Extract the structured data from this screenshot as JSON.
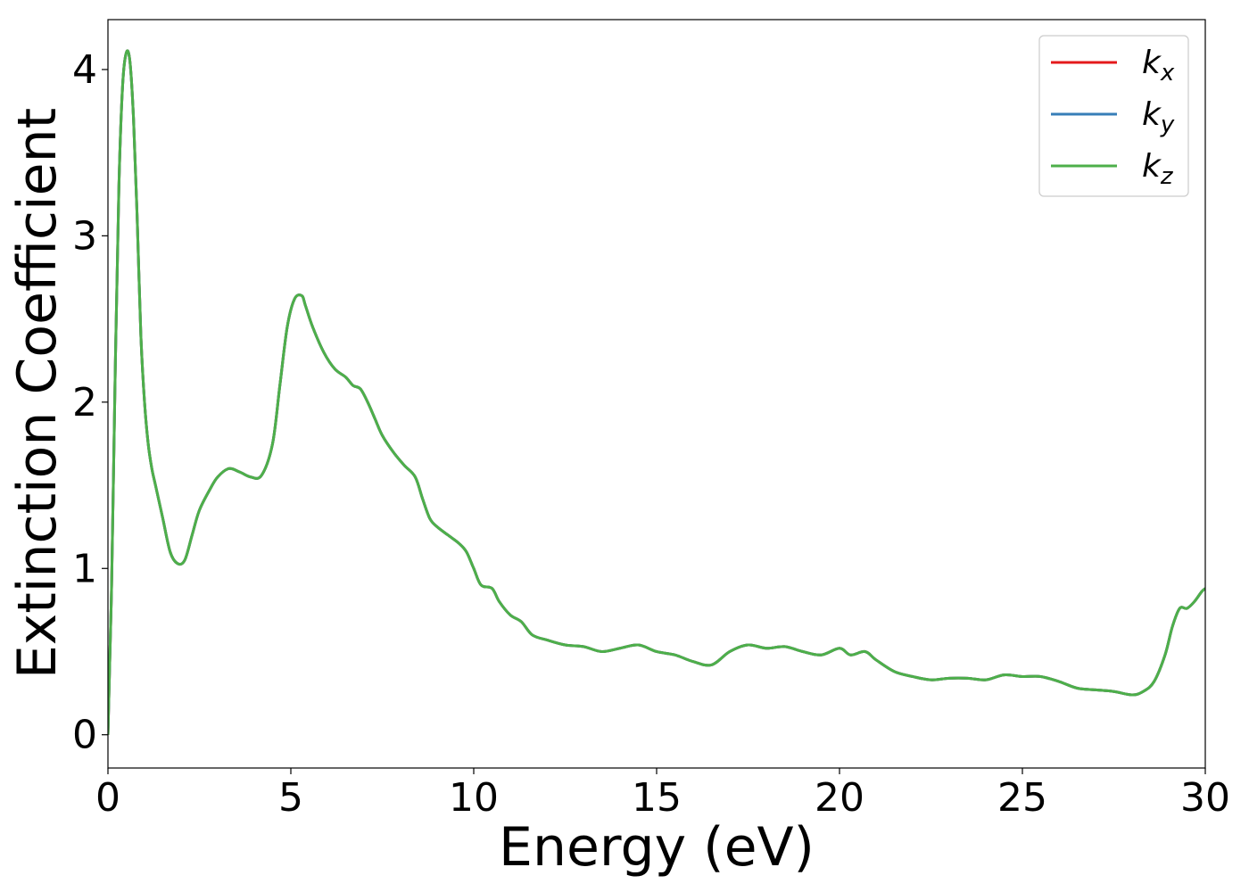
{
  "chart_data": {
    "type": "line",
    "title": "",
    "xlabel": "Energy (eV)",
    "ylabel": "Extinction Coefficient",
    "xlim": [
      0,
      30
    ],
    "ylim": [
      -0.2,
      4.3
    ],
    "xticks": [
      0,
      5,
      10,
      15,
      20,
      25,
      30
    ],
    "xtick_labels": [
      "0",
      "5",
      "10",
      "15",
      "20",
      "25",
      "30"
    ],
    "yticks": [
      0,
      1,
      2,
      3,
      4
    ],
    "ytick_labels": [
      "0",
      "1",
      "2",
      "3",
      "4"
    ],
    "grid": false,
    "legend_position": "top-right",
    "x": [
      0,
      0.1,
      0.2,
      0.3,
      0.4,
      0.5,
      0.6,
      0.7,
      0.8,
      0.9,
      1.0,
      1.1,
      1.2,
      1.3,
      1.5,
      1.7,
      1.9,
      2.1,
      2.3,
      2.5,
      2.8,
      3.0,
      3.3,
      3.6,
      3.9,
      4.2,
      4.5,
      4.7,
      4.9,
      5.1,
      5.3,
      5.4,
      5.6,
      5.9,
      6.2,
      6.5,
      6.7,
      6.9,
      7.1,
      7.3,
      7.5,
      7.8,
      8.1,
      8.4,
      8.6,
      8.8,
      9.0,
      9.3,
      9.6,
      9.8,
      10.0,
      10.2,
      10.5,
      10.7,
      11.0,
      11.3,
      11.6,
      12.0,
      12.5,
      13.0,
      13.5,
      14.0,
      14.5,
      15.0,
      15.5,
      16.0,
      16.5,
      17.0,
      17.5,
      18.0,
      18.5,
      19.0,
      19.5,
      20.0,
      20.3,
      20.7,
      21.0,
      21.5,
      22.0,
      22.5,
      23.0,
      23.5,
      24.0,
      24.5,
      25.0,
      25.5,
      26.0,
      26.5,
      27.0,
      27.5,
      28.0,
      28.3,
      28.6,
      28.9,
      29.1,
      29.3,
      29.5,
      29.7,
      29.9,
      30.0
    ],
    "series": [
      {
        "name": "k_x",
        "color": "#e41a1c",
        "values": [
          0.0,
          0.9,
          2.2,
          3.3,
          3.9,
          4.1,
          4.05,
          3.7,
          3.1,
          2.4,
          2.0,
          1.75,
          1.6,
          1.5,
          1.3,
          1.1,
          1.03,
          1.05,
          1.2,
          1.35,
          1.48,
          1.55,
          1.6,
          1.58,
          1.55,
          1.56,
          1.75,
          2.1,
          2.45,
          2.62,
          2.64,
          2.58,
          2.45,
          2.3,
          2.2,
          2.15,
          2.1,
          2.08,
          2.0,
          1.9,
          1.8,
          1.7,
          1.62,
          1.55,
          1.42,
          1.3,
          1.25,
          1.2,
          1.15,
          1.1,
          1.0,
          0.9,
          0.88,
          0.8,
          0.72,
          0.68,
          0.6,
          0.57,
          0.54,
          0.53,
          0.5,
          0.52,
          0.54,
          0.5,
          0.48,
          0.44,
          0.42,
          0.5,
          0.54,
          0.52,
          0.53,
          0.5,
          0.48,
          0.52,
          0.48,
          0.5,
          0.45,
          0.38,
          0.35,
          0.33,
          0.34,
          0.34,
          0.33,
          0.36,
          0.35,
          0.35,
          0.32,
          0.28,
          0.27,
          0.26,
          0.24,
          0.26,
          0.32,
          0.48,
          0.65,
          0.76,
          0.76,
          0.8,
          0.86,
          0.88
        ]
      },
      {
        "name": "k_y",
        "color": "#377eb8",
        "values": [
          0.0,
          0.9,
          2.2,
          3.3,
          3.9,
          4.1,
          4.05,
          3.7,
          3.1,
          2.4,
          2.0,
          1.75,
          1.6,
          1.5,
          1.3,
          1.1,
          1.03,
          1.05,
          1.2,
          1.35,
          1.48,
          1.55,
          1.6,
          1.58,
          1.55,
          1.56,
          1.75,
          2.1,
          2.45,
          2.62,
          2.64,
          2.58,
          2.45,
          2.3,
          2.2,
          2.15,
          2.1,
          2.08,
          2.0,
          1.9,
          1.8,
          1.7,
          1.62,
          1.55,
          1.42,
          1.3,
          1.25,
          1.2,
          1.15,
          1.1,
          1.0,
          0.9,
          0.88,
          0.8,
          0.72,
          0.68,
          0.6,
          0.57,
          0.54,
          0.53,
          0.5,
          0.52,
          0.54,
          0.5,
          0.48,
          0.44,
          0.42,
          0.5,
          0.54,
          0.52,
          0.53,
          0.5,
          0.48,
          0.52,
          0.48,
          0.5,
          0.45,
          0.38,
          0.35,
          0.33,
          0.34,
          0.34,
          0.33,
          0.36,
          0.35,
          0.35,
          0.32,
          0.28,
          0.27,
          0.26,
          0.24,
          0.26,
          0.32,
          0.48,
          0.65,
          0.76,
          0.76,
          0.8,
          0.86,
          0.88
        ]
      },
      {
        "name": "k_z",
        "color": "#4daf4a",
        "values": [
          0.0,
          0.9,
          2.2,
          3.3,
          3.9,
          4.1,
          4.05,
          3.7,
          3.1,
          2.4,
          2.0,
          1.75,
          1.6,
          1.5,
          1.3,
          1.1,
          1.03,
          1.05,
          1.2,
          1.35,
          1.48,
          1.55,
          1.6,
          1.58,
          1.55,
          1.56,
          1.75,
          2.1,
          2.45,
          2.62,
          2.64,
          2.58,
          2.45,
          2.3,
          2.2,
          2.15,
          2.1,
          2.08,
          2.0,
          1.9,
          1.8,
          1.7,
          1.62,
          1.55,
          1.42,
          1.3,
          1.25,
          1.2,
          1.15,
          1.1,
          1.0,
          0.9,
          0.88,
          0.8,
          0.72,
          0.68,
          0.6,
          0.57,
          0.54,
          0.53,
          0.5,
          0.52,
          0.54,
          0.5,
          0.48,
          0.44,
          0.42,
          0.5,
          0.54,
          0.52,
          0.53,
          0.5,
          0.48,
          0.52,
          0.48,
          0.5,
          0.45,
          0.38,
          0.35,
          0.33,
          0.34,
          0.34,
          0.33,
          0.36,
          0.35,
          0.35,
          0.32,
          0.28,
          0.27,
          0.26,
          0.24,
          0.26,
          0.32,
          0.48,
          0.65,
          0.76,
          0.76,
          0.8,
          0.86,
          0.88
        ]
      }
    ],
    "legend": [
      {
        "base": "k",
        "sub": "x"
      },
      {
        "base": "k",
        "sub": "y"
      },
      {
        "base": "k",
        "sub": "z"
      }
    ]
  }
}
